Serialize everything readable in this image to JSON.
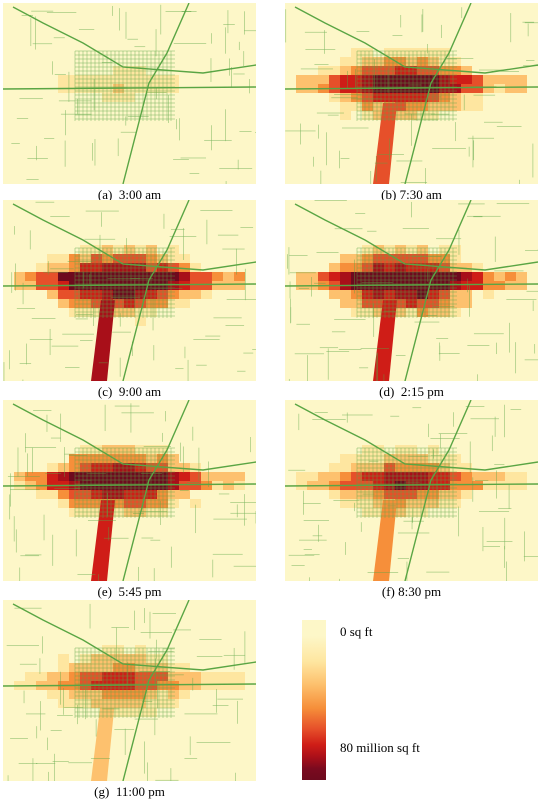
{
  "panels": [
    {
      "id": "a",
      "caption": "(a)  3:00 am",
      "intensity": 0.15
    },
    {
      "id": "b",
      "caption": "(b) 7:30 am",
      "intensity": 0.75
    },
    {
      "id": "c",
      "caption": "(c)  9:00 am",
      "intensity": 0.95
    },
    {
      "id": "d",
      "caption": "(d)  2:15 pm",
      "intensity": 0.92
    },
    {
      "id": "e",
      "caption": "(e)  5:45 pm",
      "intensity": 0.85
    },
    {
      "id": "f",
      "caption": "(f) 8:30 pm",
      "intensity": 0.55
    },
    {
      "id": "g",
      "caption": "(g)  11:00 pm",
      "intensity": 0.45
    }
  ],
  "legend": {
    "min_label": "0 sq ft",
    "max_label": "80 million sq ft"
  },
  "colors": {
    "road": "#5aa544",
    "base": "#fdf3c6",
    "scale": [
      "#fdf7c8",
      "#fee6a0",
      "#fdc16e",
      "#f68f3a",
      "#e6502a",
      "#cf1d17",
      "#a80f19",
      "#6d0a1e"
    ]
  }
}
